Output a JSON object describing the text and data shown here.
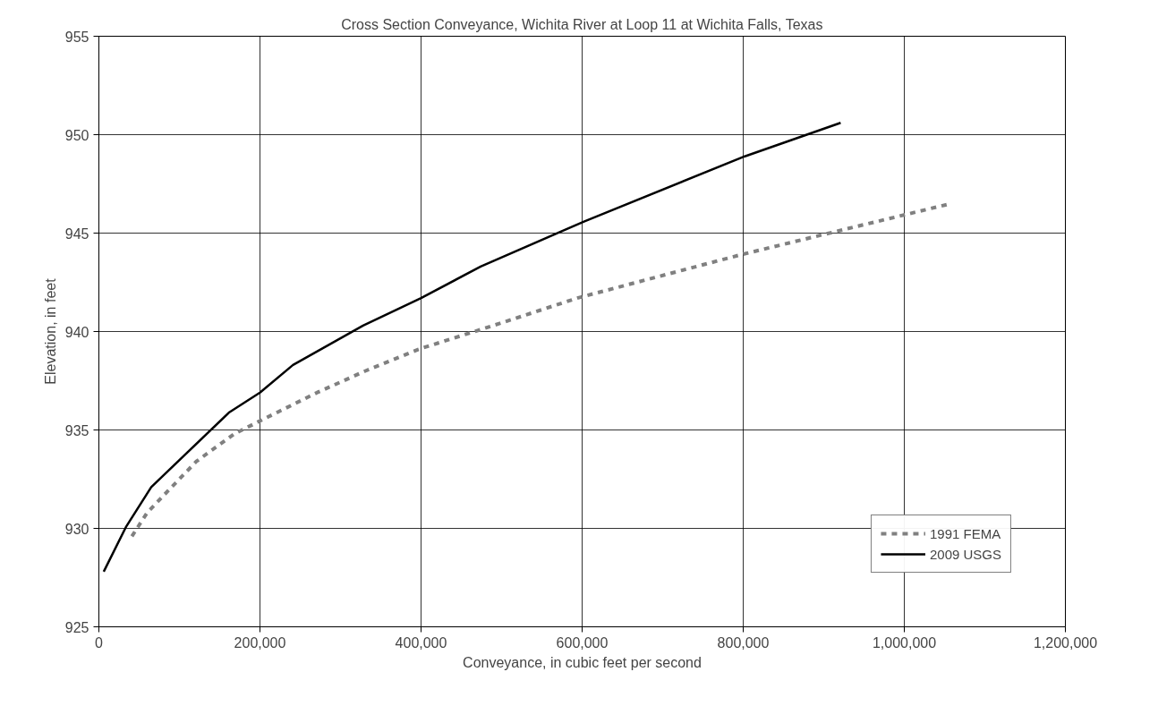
{
  "chart_data": {
    "type": "line",
    "title": "Cross Section Conveyance, Wichita River at Loop 11 at Wichita Falls, Texas",
    "xlabel": "Conveyance, in cubic feet per second",
    "ylabel": "Elevation, in feet",
    "series": [
      {
        "name": "1991 FEMA",
        "color": "#808080",
        "line_style": "dashed",
        "x": [
          41000,
          60000,
          81000,
          121000,
          168000,
          202000,
          271000,
          331000,
          397000,
          497000,
          594000,
          797000,
          927000,
          1058000
        ],
        "values": [
          929.6,
          930.8,
          931.7,
          933.4,
          934.8,
          935.5,
          936.9,
          938.0,
          939.1,
          940.4,
          941.7,
          943.9,
          945.2,
          946.5
        ]
      },
      {
        "name": "2009 USGS",
        "color": "#000000",
        "line_style": "solid",
        "x": [
          6000,
          34000,
          65000,
          162000,
          200000,
          241000,
          328000,
          400000,
          474000,
          603000,
          802000,
          921000
        ],
        "values": [
          927.8,
          930.1,
          932.1,
          935.9,
          936.9,
          938.3,
          940.3,
          941.7,
          943.3,
          945.6,
          948.9,
          950.6
        ]
      }
    ],
    "xlim": [
      0,
      1200000
    ],
    "xticks": [
      {
        "value": 0,
        "label": "0"
      },
      {
        "value": 200000,
        "label": "200,000"
      },
      {
        "value": 400000,
        "label": "400,000"
      },
      {
        "value": 600000,
        "label": "600,000"
      },
      {
        "value": 800000,
        "label": "800,000"
      },
      {
        "value": 1000000,
        "label": "1,000,000"
      },
      {
        "value": 1200000,
        "label": "1,200,000"
      }
    ],
    "ylim": [
      925,
      955
    ],
    "yticks": [
      925,
      930,
      935,
      940,
      945,
      950,
      955
    ],
    "grid": true,
    "legend": "bottom right",
    "marker": "none"
  }
}
